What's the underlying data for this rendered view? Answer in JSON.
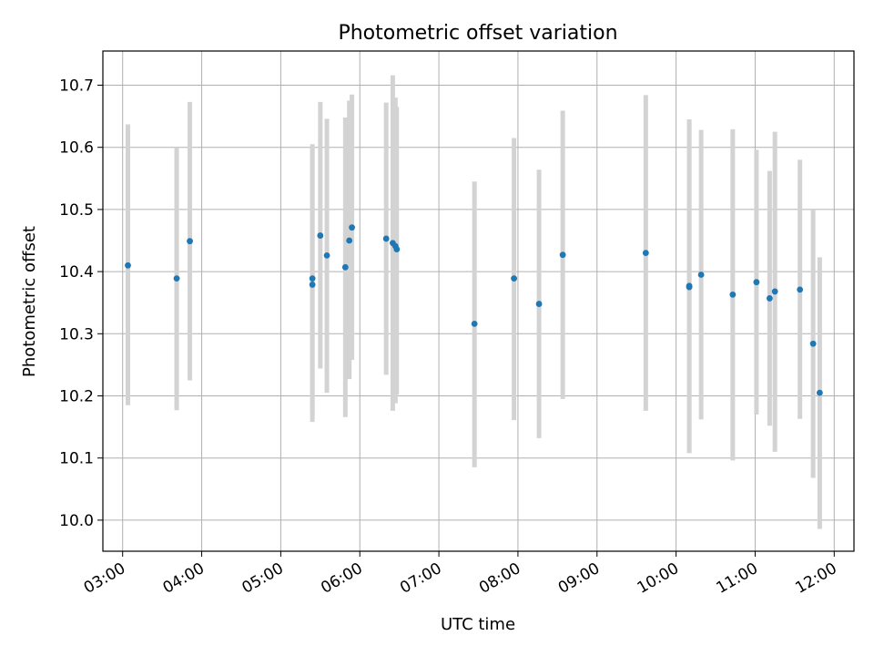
{
  "chart_data": {
    "type": "scatter",
    "title": "Photometric offset variation",
    "xlabel": "UTC time",
    "ylabel": "Photometric offset",
    "x_unit": "hours UTC",
    "xlim": [
      "02:45",
      "12:15"
    ],
    "ylim": [
      9.95,
      10.755
    ],
    "x_ticks": [
      "03:00",
      "04:00",
      "05:00",
      "06:00",
      "07:00",
      "08:00",
      "09:00",
      "10:00",
      "11:00",
      "12:00"
    ],
    "y_ticks": [
      "10.0",
      "10.1",
      "10.2",
      "10.3",
      "10.4",
      "10.5",
      "10.6",
      "10.7"
    ],
    "grid": true,
    "marker_color": "#1f77b4",
    "errorbar_color": "#d3d3d3",
    "points": [
      {
        "time": "03:04",
        "value": 10.41,
        "low": 10.185,
        "high": 10.637
      },
      {
        "time": "03:41",
        "value": 10.389,
        "low": 10.177,
        "high": 10.6
      },
      {
        "time": "03:51",
        "value": 10.449,
        "low": 10.225,
        "high": 10.673
      },
      {
        "time": "05:24",
        "value": 10.389,
        "low": 10.172,
        "high": 10.605
      },
      {
        "time": "05:24",
        "value": 10.379,
        "low": 10.158,
        "high": 10.6
      },
      {
        "time": "05:30",
        "value": 10.458,
        "low": 10.244,
        "high": 10.673
      },
      {
        "time": "05:35",
        "value": 10.426,
        "low": 10.205,
        "high": 10.646
      },
      {
        "time": "05:49",
        "value": 10.407,
        "low": 10.166,
        "high": 10.648
      },
      {
        "time": "05:52",
        "value": 10.45,
        "low": 10.227,
        "high": 10.675
      },
      {
        "time": "05:54",
        "value": 10.471,
        "low": 10.258,
        "high": 10.685
      },
      {
        "time": "06:20",
        "value": 10.453,
        "low": 10.234,
        "high": 10.672
      },
      {
        "time": "06:25",
        "value": 10.446,
        "low": 10.176,
        "high": 10.716
      },
      {
        "time": "06:27",
        "value": 10.441,
        "low": 10.188,
        "high": 10.68
      },
      {
        "time": "06:28",
        "value": 10.436,
        "low": 10.202,
        "high": 10.665
      },
      {
        "time": "07:27",
        "value": 10.316,
        "low": 10.085,
        "high": 10.545
      },
      {
        "time": "07:57",
        "value": 10.389,
        "low": 10.161,
        "high": 10.615
      },
      {
        "time": "08:16",
        "value": 10.348,
        "low": 10.132,
        "high": 10.564
      },
      {
        "time": "08:34",
        "value": 10.427,
        "low": 10.195,
        "high": 10.659
      },
      {
        "time": "09:37",
        "value": 10.43,
        "low": 10.176,
        "high": 10.684
      },
      {
        "time": "10:10",
        "value": 10.377,
        "low": 10.108,
        "high": 10.645
      },
      {
        "time": "10:10",
        "value": 10.375,
        "low": 10.108,
        "high": 10.64
      },
      {
        "time": "10:19",
        "value": 10.395,
        "low": 10.162,
        "high": 10.628
      },
      {
        "time": "10:43",
        "value": 10.363,
        "low": 10.096,
        "high": 10.629
      },
      {
        "time": "11:01",
        "value": 10.383,
        "low": 10.17,
        "high": 10.596
      },
      {
        "time": "11:11",
        "value": 10.357,
        "low": 10.152,
        "high": 10.562
      },
      {
        "time": "11:15",
        "value": 10.368,
        "low": 10.11,
        "high": 10.625
      },
      {
        "time": "11:34",
        "value": 10.371,
        "low": 10.163,
        "high": 10.58
      },
      {
        "time": "11:44",
        "value": 10.284,
        "low": 10.068,
        "high": 10.5
      },
      {
        "time": "11:49",
        "value": 10.205,
        "low": 9.986,
        "high": 10.423
      }
    ]
  }
}
